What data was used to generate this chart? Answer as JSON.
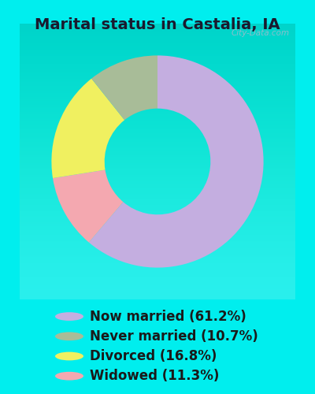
{
  "title": "Marital status in Castalia, IA",
  "slices": [
    61.2,
    11.3,
    16.8,
    10.7
  ],
  "colors": [
    "#c4aee0",
    "#f4a8b0",
    "#f0f060",
    "#a8bc98"
  ],
  "labels": [
    "Now married (61.2%)",
    "Never married (10.7%)",
    "Divorced (16.8%)",
    "Widowed (11.3%)"
  ],
  "legend_colors": [
    "#c4aee0",
    "#a8bc98",
    "#f0f060",
    "#f4a8b0"
  ],
  "legend_labels": [
    "Now married (61.2%)",
    "Never married (10.7%)",
    "Divorced (16.8%)",
    "Widowed (11.3%)"
  ],
  "bg_color": "#00eeee",
  "chart_bg_top": "#e8f5f0",
  "chart_bg_bottom": "#d8ecd8",
  "title_color": "#1a1a2e",
  "title_fontsize": 14,
  "legend_fontsize": 12,
  "watermark": "City-Data.com"
}
